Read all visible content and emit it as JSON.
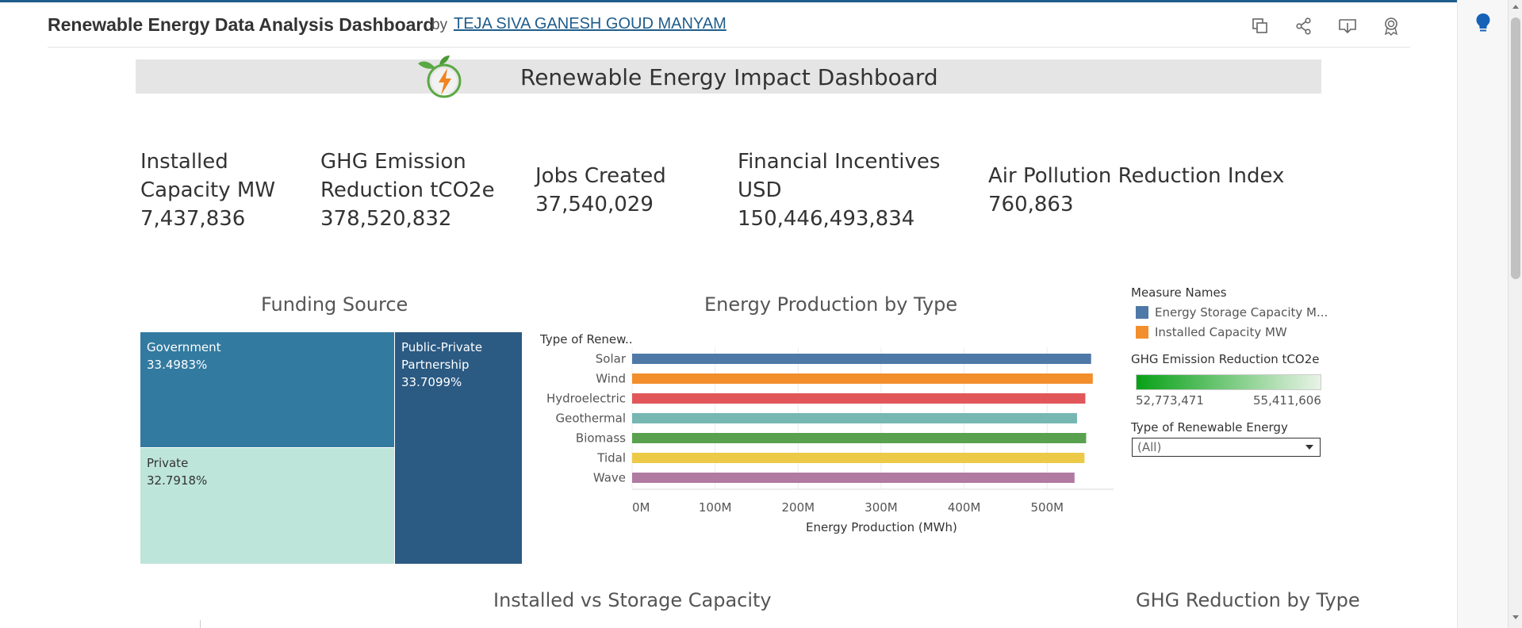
{
  "header": {
    "title": "Renewable Energy Data Analysis Dashboard",
    "by": "by",
    "author": "TEJA SIVA GANESH GOUD MANYAM",
    "icons": [
      "copy-icon",
      "share-icon",
      "download-icon",
      "badge-icon"
    ]
  },
  "sidebar_icon": "lightbulb-icon",
  "colors": {
    "accent": "#1f5d8c",
    "government": "#337aa0",
    "private": "#bde5d9",
    "ppp": "#2b5a83",
    "energy_storage": "#4e79a7",
    "installed_capacity": "#f28e2b"
  },
  "banner": {
    "title": "Renewable Energy Impact Dashboard"
  },
  "kpis": [
    {
      "label_lines": [
        "Installed",
        "Capacity MW"
      ],
      "value": "7,437,836"
    },
    {
      "label_lines": [
        "GHG Emission",
        "Reduction tCO2e"
      ],
      "value": "378,520,832"
    },
    {
      "label_lines": [
        "Jobs Created"
      ],
      "value": "37,540,029"
    },
    {
      "label_lines": [
        "Financial Incentives",
        "USD"
      ],
      "value": "150,446,493,834"
    },
    {
      "label_lines": [
        "Air Pollution Reduction Index"
      ],
      "value": "760,863"
    }
  ],
  "funding": {
    "title": "Funding Source",
    "tiles": [
      {
        "name": "Government",
        "pct": "33.4983%"
      },
      {
        "name_lines": [
          "Public-Private",
          "Partnership"
        ],
        "pct": "33.7099%"
      },
      {
        "name": "Private",
        "pct": "32.7918%"
      }
    ]
  },
  "energy_chart": {
    "title": "Energy Production by Type",
    "y_header": "Type of Renew..",
    "x_title": "Energy Production (MWh)"
  },
  "chart_data": {
    "type": "bar",
    "orientation": "horizontal",
    "title": "Energy Production by Type",
    "xlabel": "Energy Production (MWh)",
    "ylabel": "Type of Renew..",
    "categories": [
      "Solar",
      "Wind",
      "Hydroelectric",
      "Geothermal",
      "Biomass",
      "Tidal",
      "Wave"
    ],
    "values": [
      553000000,
      555000000,
      546000000,
      536000000,
      547000000,
      545000000,
      533000000
    ],
    "colors": [
      "#4e79a7",
      "#f28e2b",
      "#e15759",
      "#76b7b2",
      "#59a14f",
      "#edc948",
      "#b07aa1"
    ],
    "xlim": [
      0,
      580000000
    ],
    "xticks": [
      0,
      100000000,
      200000000,
      300000000,
      400000000,
      500000000
    ],
    "xtick_labels": [
      "0M",
      "100M",
      "200M",
      "300M",
      "400M",
      "500M"
    ],
    "grid": true
  },
  "legend": {
    "measure_heading": "Measure Names",
    "items": [
      {
        "label": "Energy Storage Capacity M...",
        "color": "#4e79a7"
      },
      {
        "label": "Installed Capacity MW",
        "color": "#f28e2b"
      }
    ],
    "ghg_heading": "GHG Emission Reduction tCO2e",
    "ghg_min": "52,773,471",
    "ghg_max": "55,411,606",
    "filter_heading": "Type of Renewable Energy",
    "filter_value": "(All)"
  },
  "lower": {
    "installed_vs_storage_title": "Installed vs Storage Capacity",
    "ghg_by_type_title": "GHG Reduction by Type"
  }
}
